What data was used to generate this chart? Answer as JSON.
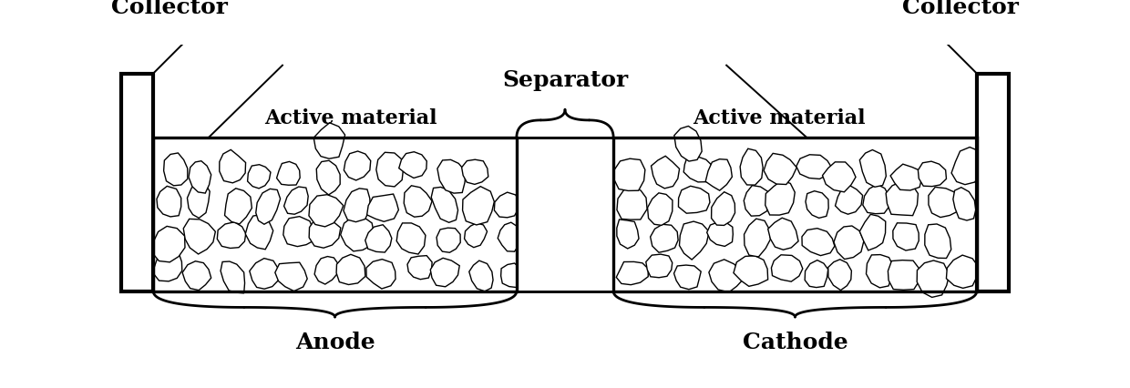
{
  "fig_width": 12.4,
  "fig_height": 4.26,
  "dpi": 100,
  "bg_color": "#ffffff",
  "line_color": "#000000",
  "labels": {
    "collector_left": "Collector",
    "collector_right": "Collector",
    "separator": "Separator",
    "active_material_left": "Active material",
    "active_material_right": "Active material",
    "anode": "Anode",
    "cathode": "Cathode"
  }
}
